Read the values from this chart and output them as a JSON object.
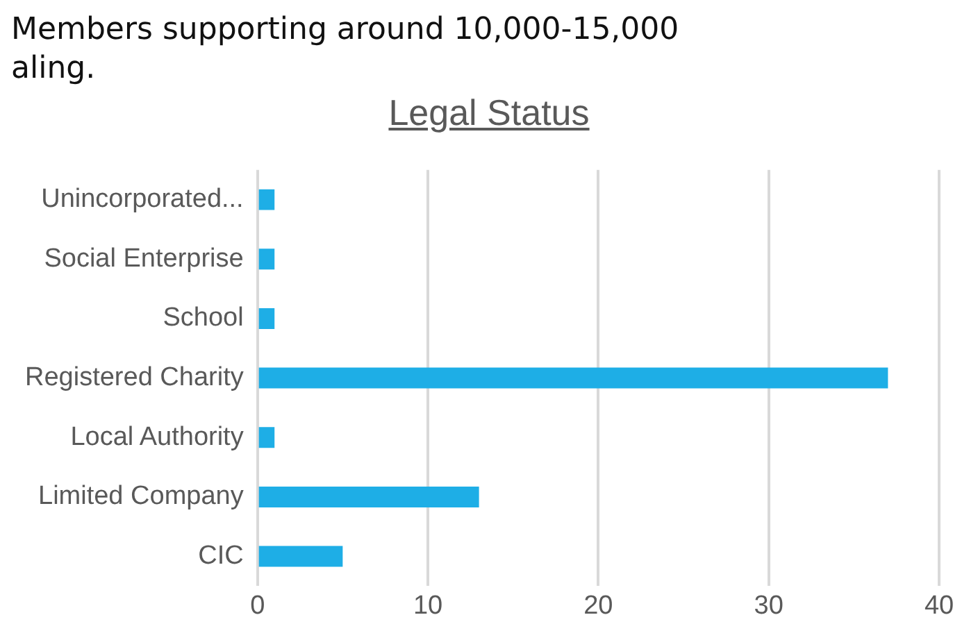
{
  "chart_data": {
    "type": "bar",
    "orientation": "horizontal",
    "title": "Legal Status",
    "annotations": [
      "Members supporting around 10,000-15,000",
      "aling."
    ],
    "categories": [
      "Unincorporated...",
      "Social Enterprise",
      "School",
      "Registered Charity",
      "Local Authority",
      "Limited Company",
      "CIC"
    ],
    "values": [
      1,
      1,
      1,
      37,
      1,
      13,
      5
    ],
    "color": "#1eaee6",
    "xlim": [
      0,
      40
    ],
    "xticks": [
      0,
      10,
      20,
      30,
      40
    ],
    "grid": "x",
    "legend": false
  }
}
